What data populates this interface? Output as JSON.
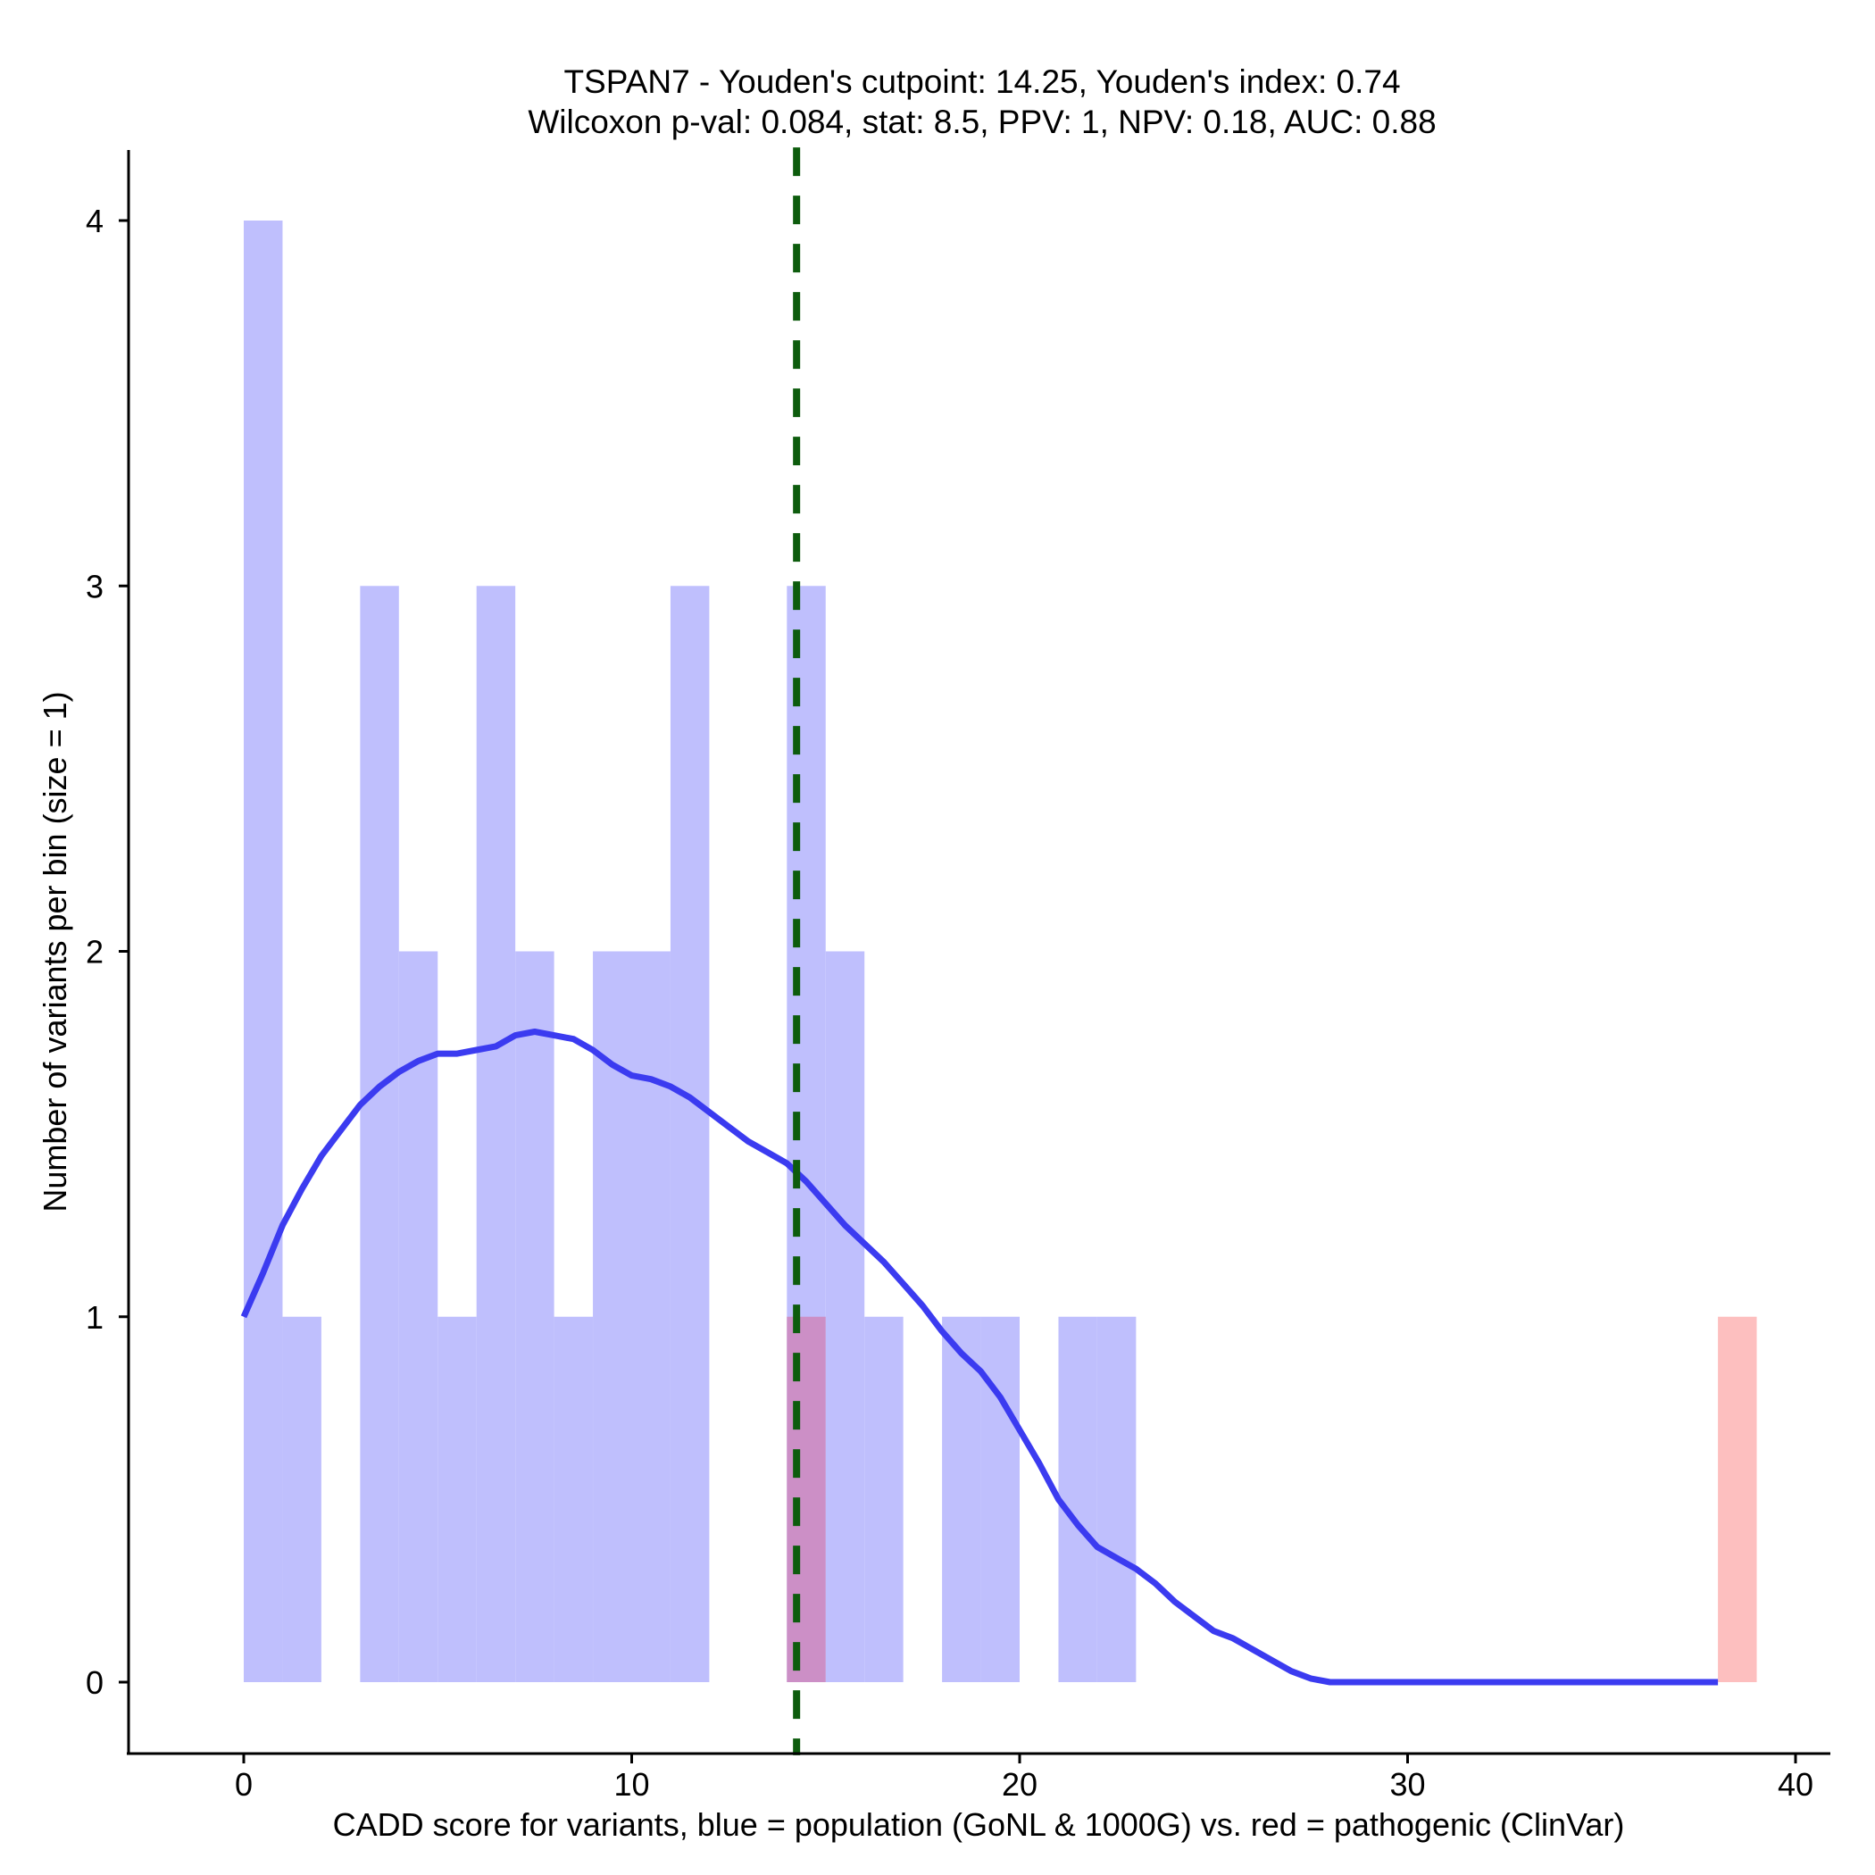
{
  "chart_data": {
    "type": "bar",
    "title_line1": "TSPAN7 - Youden's cutpoint: 14.25, Youden's index: 0.74",
    "title_line2": "Wilcoxon p-val: 0.084, stat: 8.5, PPV: 1, NPV: 0.18, AUC: 0.88",
    "xlabel": "CADD score for variants, blue = population (GoNL & 1000G) vs. red = pathogenic (ClinVar)",
    "ylabel": "Number of variants per bin (size = 1)",
    "xlim": [
      -3,
      41
    ],
    "ylim": [
      -0.2,
      4.2
    ],
    "xticks": [
      0,
      10,
      20,
      30,
      40
    ],
    "yticks": [
      0,
      1,
      2,
      3,
      4
    ],
    "bin_size": 1,
    "cutpoint": 14.25,
    "colors": {
      "population": "#bfbffd",
      "pathogenic": "#fdbfbf",
      "overlap": "#cc8fc6",
      "density": "#3b3bf0",
      "cutpoint": "#0d5c0d"
    },
    "series": [
      {
        "name": "population",
        "bins": [
          {
            "start": 0,
            "count": 4
          },
          {
            "start": 1,
            "count": 1
          },
          {
            "start": 3,
            "count": 3
          },
          {
            "start": 4,
            "count": 2
          },
          {
            "start": 5,
            "count": 1
          },
          {
            "start": 6,
            "count": 3
          },
          {
            "start": 7,
            "count": 2
          },
          {
            "start": 8,
            "count": 1
          },
          {
            "start": 9,
            "count": 2
          },
          {
            "start": 10,
            "count": 2
          },
          {
            "start": 11,
            "count": 3
          },
          {
            "start": 14,
            "count": 3
          },
          {
            "start": 15,
            "count": 2
          },
          {
            "start": 16,
            "count": 1
          },
          {
            "start": 18,
            "count": 1
          },
          {
            "start": 19,
            "count": 1
          },
          {
            "start": 21,
            "count": 1
          },
          {
            "start": 22,
            "count": 1
          }
        ]
      },
      {
        "name": "pathogenic",
        "bins": [
          {
            "start": 14,
            "count": 1
          },
          {
            "start": 38,
            "count": 1
          }
        ]
      }
    ],
    "density_curve": {
      "x": [
        0,
        0.5,
        1,
        1.5,
        2,
        2.5,
        3,
        3.5,
        4,
        4.5,
        5,
        5.5,
        6,
        6.5,
        7,
        7.5,
        8,
        8.5,
        9,
        9.5,
        10,
        10.5,
        11,
        11.5,
        12,
        12.5,
        13,
        13.5,
        14,
        14.5,
        15,
        15.5,
        16,
        16.5,
        17,
        17.5,
        18,
        18.5,
        19,
        19.5,
        20,
        20.5,
        21,
        21.5,
        22,
        22.5,
        23,
        23.5,
        24,
        24.5,
        25,
        25.5,
        26,
        26.5,
        27,
        27.5,
        28,
        28.5,
        30,
        35,
        38
      ],
      "y": [
        1.0,
        1.12,
        1.25,
        1.35,
        1.44,
        1.51,
        1.58,
        1.63,
        1.67,
        1.7,
        1.72,
        1.72,
        1.73,
        1.74,
        1.77,
        1.78,
        1.77,
        1.76,
        1.73,
        1.69,
        1.66,
        1.65,
        1.63,
        1.6,
        1.56,
        1.52,
        1.48,
        1.45,
        1.42,
        1.37,
        1.31,
        1.25,
        1.2,
        1.15,
        1.09,
        1.03,
        0.96,
        0.9,
        0.85,
        0.78,
        0.69,
        0.6,
        0.5,
        0.43,
        0.37,
        0.34,
        0.31,
        0.27,
        0.22,
        0.18,
        0.14,
        0.12,
        0.09,
        0.06,
        0.03,
        0.01,
        0.0,
        0.0,
        0.0,
        0.0,
        0.0
      ]
    }
  }
}
